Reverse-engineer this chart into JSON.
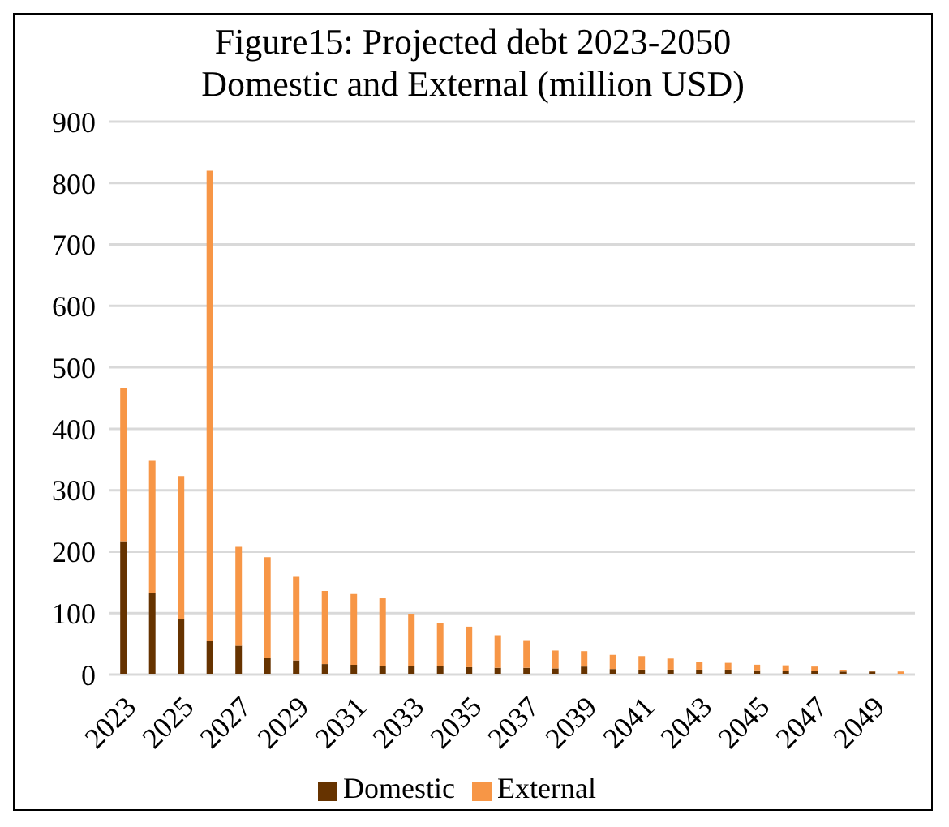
{
  "chart_data": {
    "type": "bar",
    "title": "Figure15: Projected debt 2023-2050",
    "subtitle": "Domestic and External (million USD)",
    "categories": [
      "2023",
      null,
      "2025",
      null,
      "2027",
      null,
      "2029",
      null,
      "2031",
      null,
      "2033",
      null,
      "2035",
      null,
      "2037",
      null,
      "2039",
      null,
      "2041",
      null,
      "2043",
      null,
      "2045",
      null,
      "2047",
      null,
      "2049",
      null
    ],
    "series": [
      {
        "name": "Domestic",
        "color": "#663300",
        "values": [
          217,
          133,
          90,
          55,
          47,
          27,
          23,
          17,
          16,
          14,
          14,
          14,
          12,
          11,
          11,
          10,
          13,
          9,
          8,
          8,
          8,
          8,
          7,
          6,
          6,
          5,
          5,
          0
        ]
      },
      {
        "name": "External",
        "color": "#f79646",
        "values": [
          249,
          216,
          233,
          765,
          161,
          164,
          136,
          119,
          115,
          110,
          85,
          70,
          66,
          53,
          45,
          29,
          25,
          23,
          22,
          18,
          12,
          11,
          9,
          9,
          7,
          3,
          1,
          5
        ]
      }
    ],
    "stacked": true,
    "ylim": [
      0,
      900
    ],
    "yticks": [
      0,
      100,
      200,
      300,
      400,
      500,
      600,
      700,
      800,
      900
    ],
    "grid": "y",
    "legend": "bottom"
  }
}
